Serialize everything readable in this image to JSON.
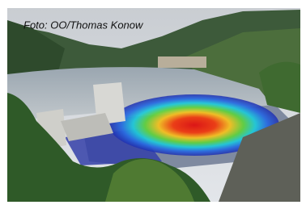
{
  "image": {
    "caption": "Foto: OO/Thomas Konow"
  }
}
